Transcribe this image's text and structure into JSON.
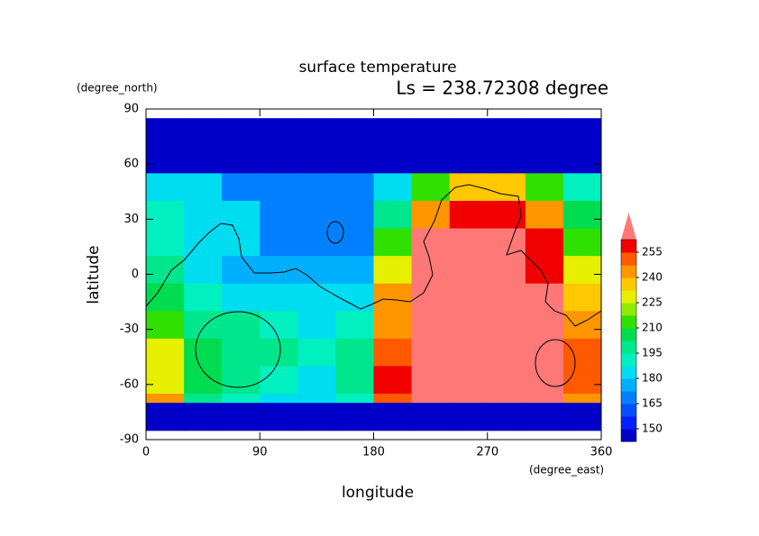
{
  "chart_data": {
    "type": "heatmap",
    "title": "surface temperature",
    "subtitle": "Ls = 238.72308 degree",
    "x_label": "longitude",
    "y_label": "latitude",
    "x_units": "(degree_east)",
    "y_units": "(degree_north)",
    "xlim": [
      0,
      360
    ],
    "ylim": [
      -90,
      90
    ],
    "xticks": [
      0,
      90,
      180,
      270,
      360
    ],
    "yticks": [
      -90,
      -60,
      -30,
      0,
      30,
      60,
      90
    ],
    "x_edges": [
      0,
      30,
      60,
      90,
      120,
      150,
      180,
      210,
      240,
      270,
      300,
      330,
      360
    ],
    "y_edges": [
      85,
      70,
      55,
      40,
      25,
      10,
      -5,
      -20,
      -35,
      -50,
      -65,
      -70,
      -85
    ],
    "z": [
      [
        145,
        145,
        145,
        145,
        145,
        145,
        145,
        145,
        145,
        145,
        145,
        145
      ],
      [
        145,
        145,
        145,
        145,
        145,
        145,
        145,
        145,
        145,
        145,
        145,
        145
      ],
      [
        185,
        180,
        172,
        170,
        168,
        170,
        180,
        215,
        235,
        235,
        215,
        190
      ],
      [
        192,
        185,
        180,
        172,
        168,
        170,
        200,
        245,
        262,
        258,
        245,
        205
      ],
      [
        190,
        185,
        183,
        172,
        170,
        168,
        215,
        265,
        265,
        265,
        255,
        215
      ],
      [
        195,
        182,
        178,
        178,
        175,
        176,
        230,
        265,
        265,
        265,
        262,
        225
      ],
      [
        205,
        190,
        186,
        185,
        180,
        185,
        240,
        265,
        265,
        265,
        265,
        235
      ],
      [
        215,
        200,
        200,
        190,
        185,
        190,
        245,
        265,
        265,
        265,
        265,
        245
      ],
      [
        225,
        205,
        200,
        195,
        190,
        195,
        250,
        265,
        265,
        265,
        265,
        250
      ],
      [
        232,
        205,
        195,
        190,
        185,
        195,
        255,
        265,
        265,
        265,
        265,
        250
      ],
      [
        245,
        200,
        190,
        185,
        182,
        190,
        250,
        265,
        265,
        265,
        265,
        245
      ],
      [
        145,
        145,
        145,
        145,
        145,
        145,
        145,
        145,
        145,
        145,
        145,
        145
      ]
    ],
    "colorbar": {
      "levels": [
        142.5,
        150,
        157.5,
        165,
        172.5,
        180,
        187.5,
        195,
        202.5,
        210,
        217.5,
        225,
        232.5,
        240,
        247.5,
        255,
        262.5
      ],
      "colors": [
        "#0000c8",
        "#0020ff",
        "#0050ff",
        "#0080ff",
        "#00b0ff",
        "#00dcf0",
        "#00f0c0",
        "#00e68c",
        "#00dc50",
        "#30e000",
        "#90ec00",
        "#e6f000",
        "#ffc800",
        "#ff9600",
        "#ff5a00",
        "#f00000"
      ],
      "extend_color": "#ff7878",
      "ticks": [
        150,
        165,
        180,
        195,
        210,
        225,
        240,
        255
      ]
    }
  }
}
